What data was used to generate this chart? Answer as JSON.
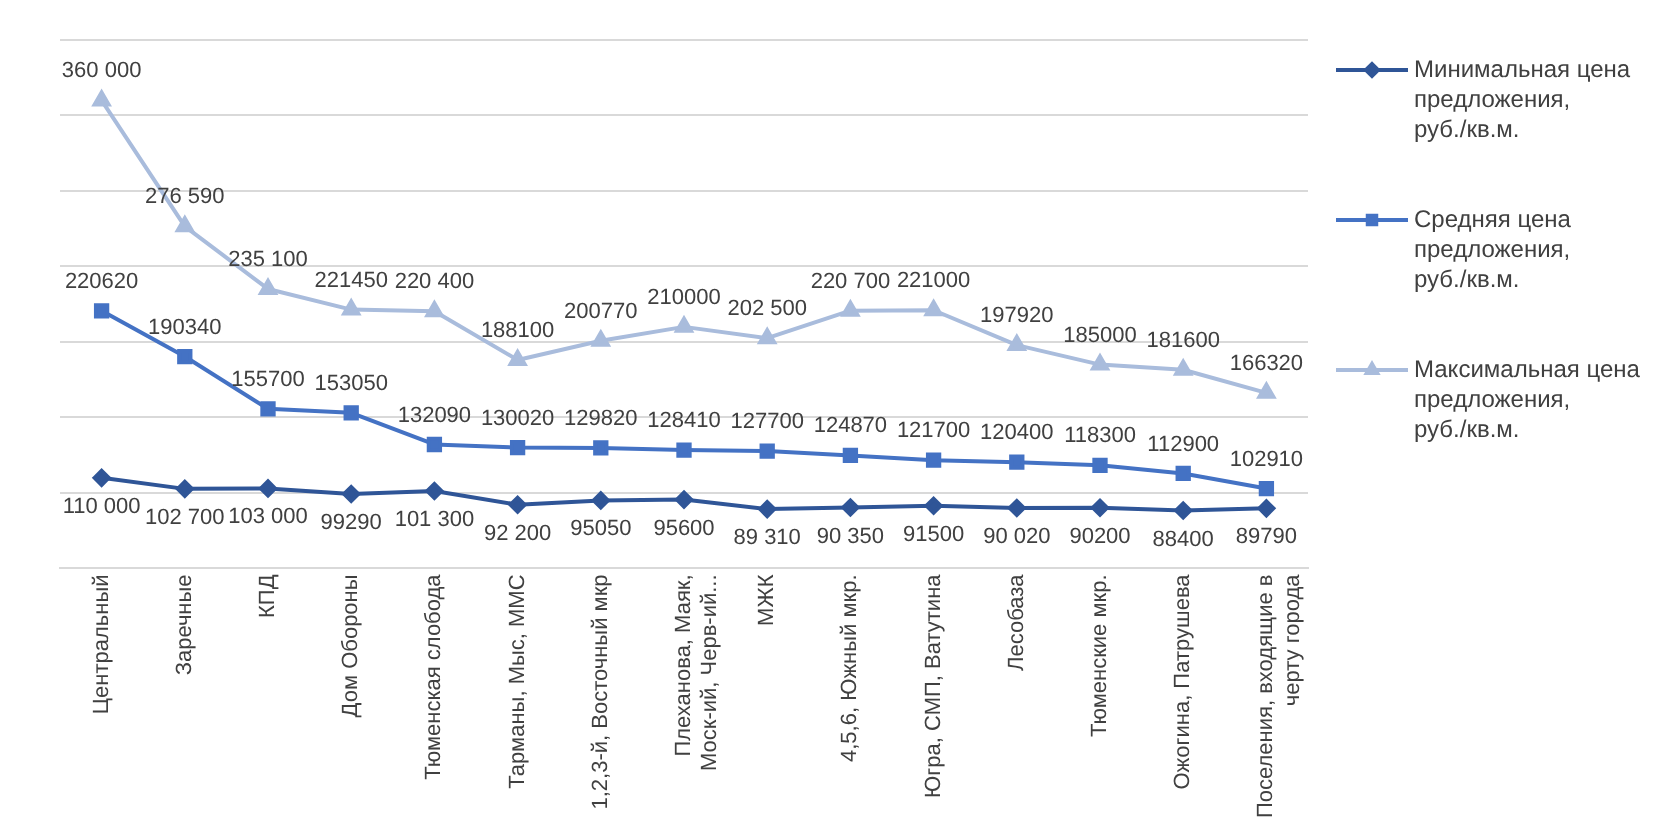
{
  "chart_data": {
    "type": "line",
    "categories": [
      "Центральный",
      "Заречные",
      "КПД",
      "Дом Обороны",
      "Тюменская слобода",
      "Тарманы, Мыс, ММС",
      "1,2,3-й, Восточный мкр",
      "Плеханова, Маяк, Моск-ий, Черв-ий...",
      "МЖК",
      "4,5,6, Южный мкр.",
      "Югра, СМП, Ватутина",
      "Лесобаза",
      "Тюменские мкр.",
      "Ожогина, Патрушева",
      "Поселения, входящие в черту города"
    ],
    "series": [
      {
        "name": "Минимальная цена предложения, руб./кв.м.",
        "color": "#2f5597",
        "marker": "diamond",
        "values": [
          110000,
          102700,
          103000,
          99290,
          101300,
          92200,
          95050,
          95600,
          89310,
          90350,
          91500,
          90020,
          90200,
          88400,
          89790
        ],
        "value_labels": [
          "110 000",
          "102 700",
          "103 000",
          "99290",
          "101 300",
          "92 200",
          "95050",
          "95600",
          "89 310",
          "90 350",
          "91500",
          "90 020",
          "90200",
          "88400",
          "89790"
        ]
      },
      {
        "name": "Средняя цена предложения, руб./кв.м.",
        "color": "#4472c4",
        "marker": "square",
        "values": [
          220620,
          190340,
          155700,
          153050,
          132090,
          130020,
          129820,
          128410,
          127700,
          124870,
          121700,
          120400,
          118300,
          112900,
          102910
        ],
        "value_labels": [
          "220620",
          "190340",
          "155700",
          "153050",
          "132090",
          "130020",
          "129820",
          "128410",
          "127700",
          "124870",
          "121700",
          "120400",
          "118300",
          "112900",
          "102910"
        ]
      },
      {
        "name": "Максимальная цена предложения, руб./кв.м.",
        "color": "#a9bcdc",
        "marker": "triangle",
        "values": [
          360000,
          276590,
          235100,
          221450,
          220400,
          188100,
          200770,
          210000,
          202500,
          220700,
          221000,
          197920,
          185000,
          181600,
          166320
        ],
        "value_labels": [
          "360 000",
          "276 590",
          "235 100",
          "221450",
          "220 400",
          "188100",
          "200770",
          "210000",
          "202 500",
          "220 700",
          "221000",
          "197920",
          "185000",
          "181600",
          "166320"
        ]
      }
    ],
    "ylim": [
      50000,
      400000
    ],
    "yticks": [
      {
        "value": 50000,
        "label": null
      },
      {
        "value": 100000,
        "label": null
      },
      {
        "value": 150000,
        "label": null
      },
      {
        "value": 200000,
        "label": null
      },
      {
        "value": 250000,
        "label": null
      },
      {
        "value": 300000,
        "label": null
      },
      {
        "value": 350000,
        "label": null
      },
      {
        "value": 400000,
        "label": null
      }
    ],
    "tick_labels": "x",
    "grid": "y",
    "legend": "right",
    "line_style": "solid"
  }
}
